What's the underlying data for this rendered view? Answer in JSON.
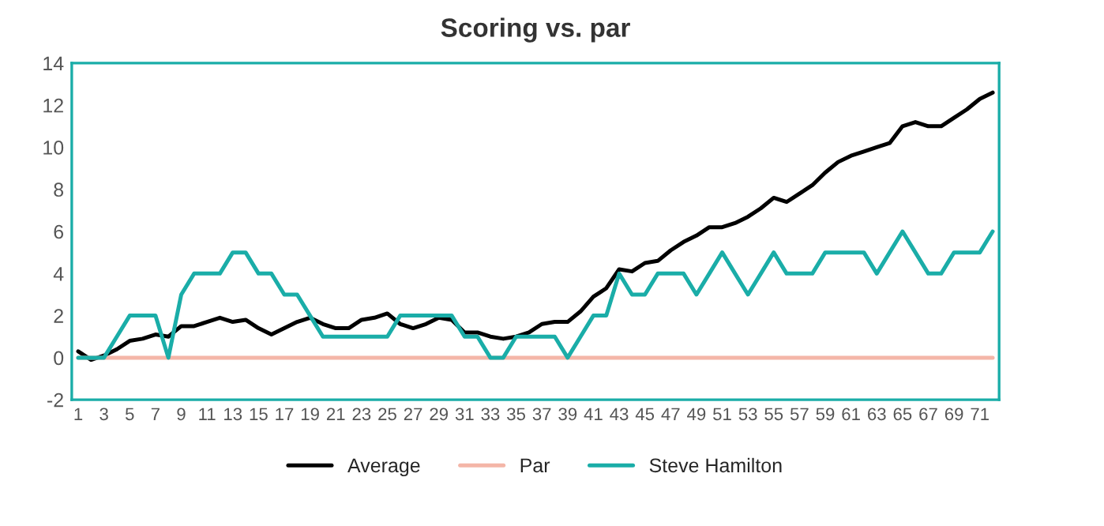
{
  "chart_data": {
    "type": "line",
    "title": "Scoring vs. par",
    "categories": [
      "1",
      null,
      "3",
      null,
      "5",
      null,
      "7",
      null,
      "9",
      null,
      "11",
      null,
      "13",
      null,
      "15",
      null,
      "17",
      null,
      "19",
      null,
      "21",
      null,
      "23",
      null,
      "25",
      null,
      "27",
      null,
      "29",
      null,
      "31",
      null,
      "33",
      null,
      "35",
      null,
      "37",
      null,
      "39",
      null,
      "41",
      null,
      "43",
      null,
      "45",
      null,
      "47",
      null,
      "49",
      null,
      "51",
      null,
      "53",
      null,
      "55",
      null,
      "57",
      null,
      "59",
      null,
      "61",
      null,
      "63",
      null,
      "65",
      null,
      "67",
      null,
      "69",
      null,
      "71",
      null
    ],
    "series": [
      {
        "name": "Average",
        "color": "#000000",
        "values": [
          0.3,
          -0.1,
          0.1,
          0.4,
          0.8,
          0.9,
          1.1,
          1.0,
          1.5,
          1.5,
          1.7,
          1.9,
          1.7,
          1.8,
          1.4,
          1.1,
          1.4,
          1.7,
          1.9,
          1.6,
          1.4,
          1.4,
          1.8,
          1.9,
          2.1,
          1.6,
          1.4,
          1.6,
          1.9,
          1.8,
          1.2,
          1.2,
          1.0,
          0.9,
          1.0,
          1.2,
          1.6,
          1.7,
          1.7,
          2.2,
          2.9,
          3.3,
          4.2,
          4.1,
          4.5,
          4.6,
          5.1,
          5.5,
          5.8,
          6.2,
          6.2,
          6.4,
          6.7,
          7.1,
          7.6,
          7.4,
          7.8,
          8.2,
          8.8,
          9.3,
          9.6,
          9.8,
          10.0,
          10.2,
          11.0,
          11.2,
          11.0,
          11.0,
          11.4,
          11.8,
          12.3,
          12.6
        ]
      },
      {
        "name": "Par",
        "color": "#f4b6a8",
        "values": [
          0,
          0,
          0,
          0,
          0,
          0,
          0,
          0,
          0,
          0,
          0,
          0,
          0,
          0,
          0,
          0,
          0,
          0,
          0,
          0,
          0,
          0,
          0,
          0,
          0,
          0,
          0,
          0,
          0,
          0,
          0,
          0,
          0,
          0,
          0,
          0,
          0,
          0,
          0,
          0,
          0,
          0,
          0,
          0,
          0,
          0,
          0,
          0,
          0,
          0,
          0,
          0,
          0,
          0,
          0,
          0,
          0,
          0,
          0,
          0,
          0,
          0,
          0,
          0,
          0,
          0,
          0,
          0,
          0,
          0,
          0,
          0
        ]
      },
      {
        "name": "Steve Hamilton",
        "color": "#1aada8",
        "values": [
          0,
          0,
          0,
          1,
          2,
          2,
          2,
          0,
          3,
          4,
          4,
          4,
          5,
          5,
          4,
          4,
          3,
          3,
          2,
          1,
          1,
          1,
          1,
          1,
          1,
          2,
          2,
          2,
          2,
          2,
          1,
          1,
          0,
          0,
          1,
          1,
          1,
          1,
          0,
          1,
          2,
          2,
          4,
          3,
          3,
          4,
          4,
          4,
          3,
          4,
          5,
          4,
          3,
          4,
          5,
          4,
          4,
          4,
          5,
          5,
          5,
          5,
          4,
          5,
          6,
          5,
          4,
          4,
          5,
          5,
          5,
          6
        ]
      }
    ],
    "ylim": [
      -2,
      14
    ],
    "yticks": [
      -2,
      0,
      2,
      4,
      6,
      8,
      10,
      12,
      14
    ],
    "grid": false,
    "legend": "bottom",
    "marker": "none",
    "line_style": "solid"
  }
}
